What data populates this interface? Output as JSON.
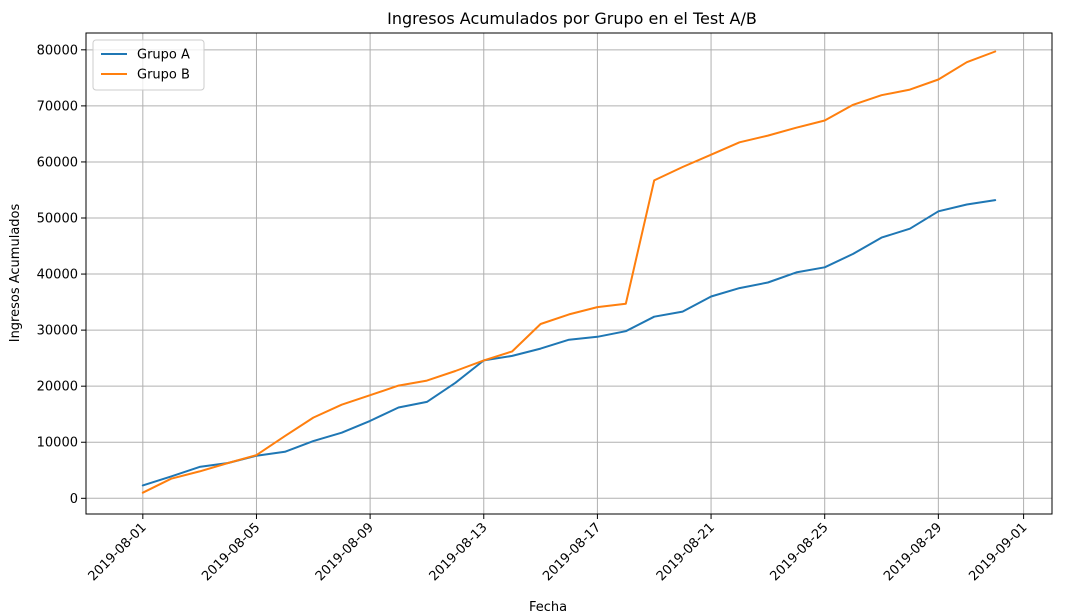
{
  "chart_data": {
    "type": "line",
    "title": "Ingresos Acumulados por Grupo en el Test A/B",
    "xlabel": "Fecha",
    "ylabel": "Ingresos Acumulados",
    "grid": true,
    "legend_position": "top-left",
    "x": [
      "2019-08-01",
      "2019-08-02",
      "2019-08-03",
      "2019-08-04",
      "2019-08-05",
      "2019-08-06",
      "2019-08-07",
      "2019-08-08",
      "2019-08-09",
      "2019-08-10",
      "2019-08-11",
      "2019-08-12",
      "2019-08-13",
      "2019-08-14",
      "2019-08-15",
      "2019-08-16",
      "2019-08-17",
      "2019-08-18",
      "2019-08-19",
      "2019-08-20",
      "2019-08-21",
      "2019-08-22",
      "2019-08-23",
      "2019-08-24",
      "2019-08-25",
      "2019-08-26",
      "2019-08-27",
      "2019-08-28",
      "2019-08-29",
      "2019-08-30",
      "2019-08-31"
    ],
    "xlim": [
      "2019-07-30",
      "2019-09-02"
    ],
    "xticks": [
      "2019-08-01",
      "2019-08-05",
      "2019-08-09",
      "2019-08-13",
      "2019-08-17",
      "2019-08-21",
      "2019-08-25",
      "2019-08-29",
      "2019-09-01"
    ],
    "ylim": [
      -2800,
      83000
    ],
    "yticks": [
      0,
      10000,
      20000,
      30000,
      40000,
      50000,
      60000,
      70000,
      80000
    ],
    "series": [
      {
        "name": "Grupo A",
        "color": "#1f77b4",
        "values": [
          2300,
          3900,
          5600,
          6300,
          7600,
          8300,
          10200,
          11700,
          13800,
          16200,
          17200,
          20600,
          24600,
          25400,
          26700,
          28300,
          28800,
          29800,
          32400,
          33300,
          36000,
          37500,
          38500,
          40300,
          41200,
          43600,
          46500,
          48100,
          51200,
          52400,
          53200
        ]
      },
      {
        "name": "Grupo B",
        "color": "#ff7f0e",
        "values": [
          1000,
          3500,
          4800,
          6300,
          7700,
          11100,
          14400,
          16700,
          18400,
          20100,
          21000,
          22700,
          24600,
          26200,
          31100,
          32800,
          34100,
          34700,
          56700,
          59100,
          61300,
          63500,
          64700,
          66100,
          67400,
          70200,
          71900,
          72900,
          74700,
          77800,
          79700
        ]
      }
    ]
  }
}
